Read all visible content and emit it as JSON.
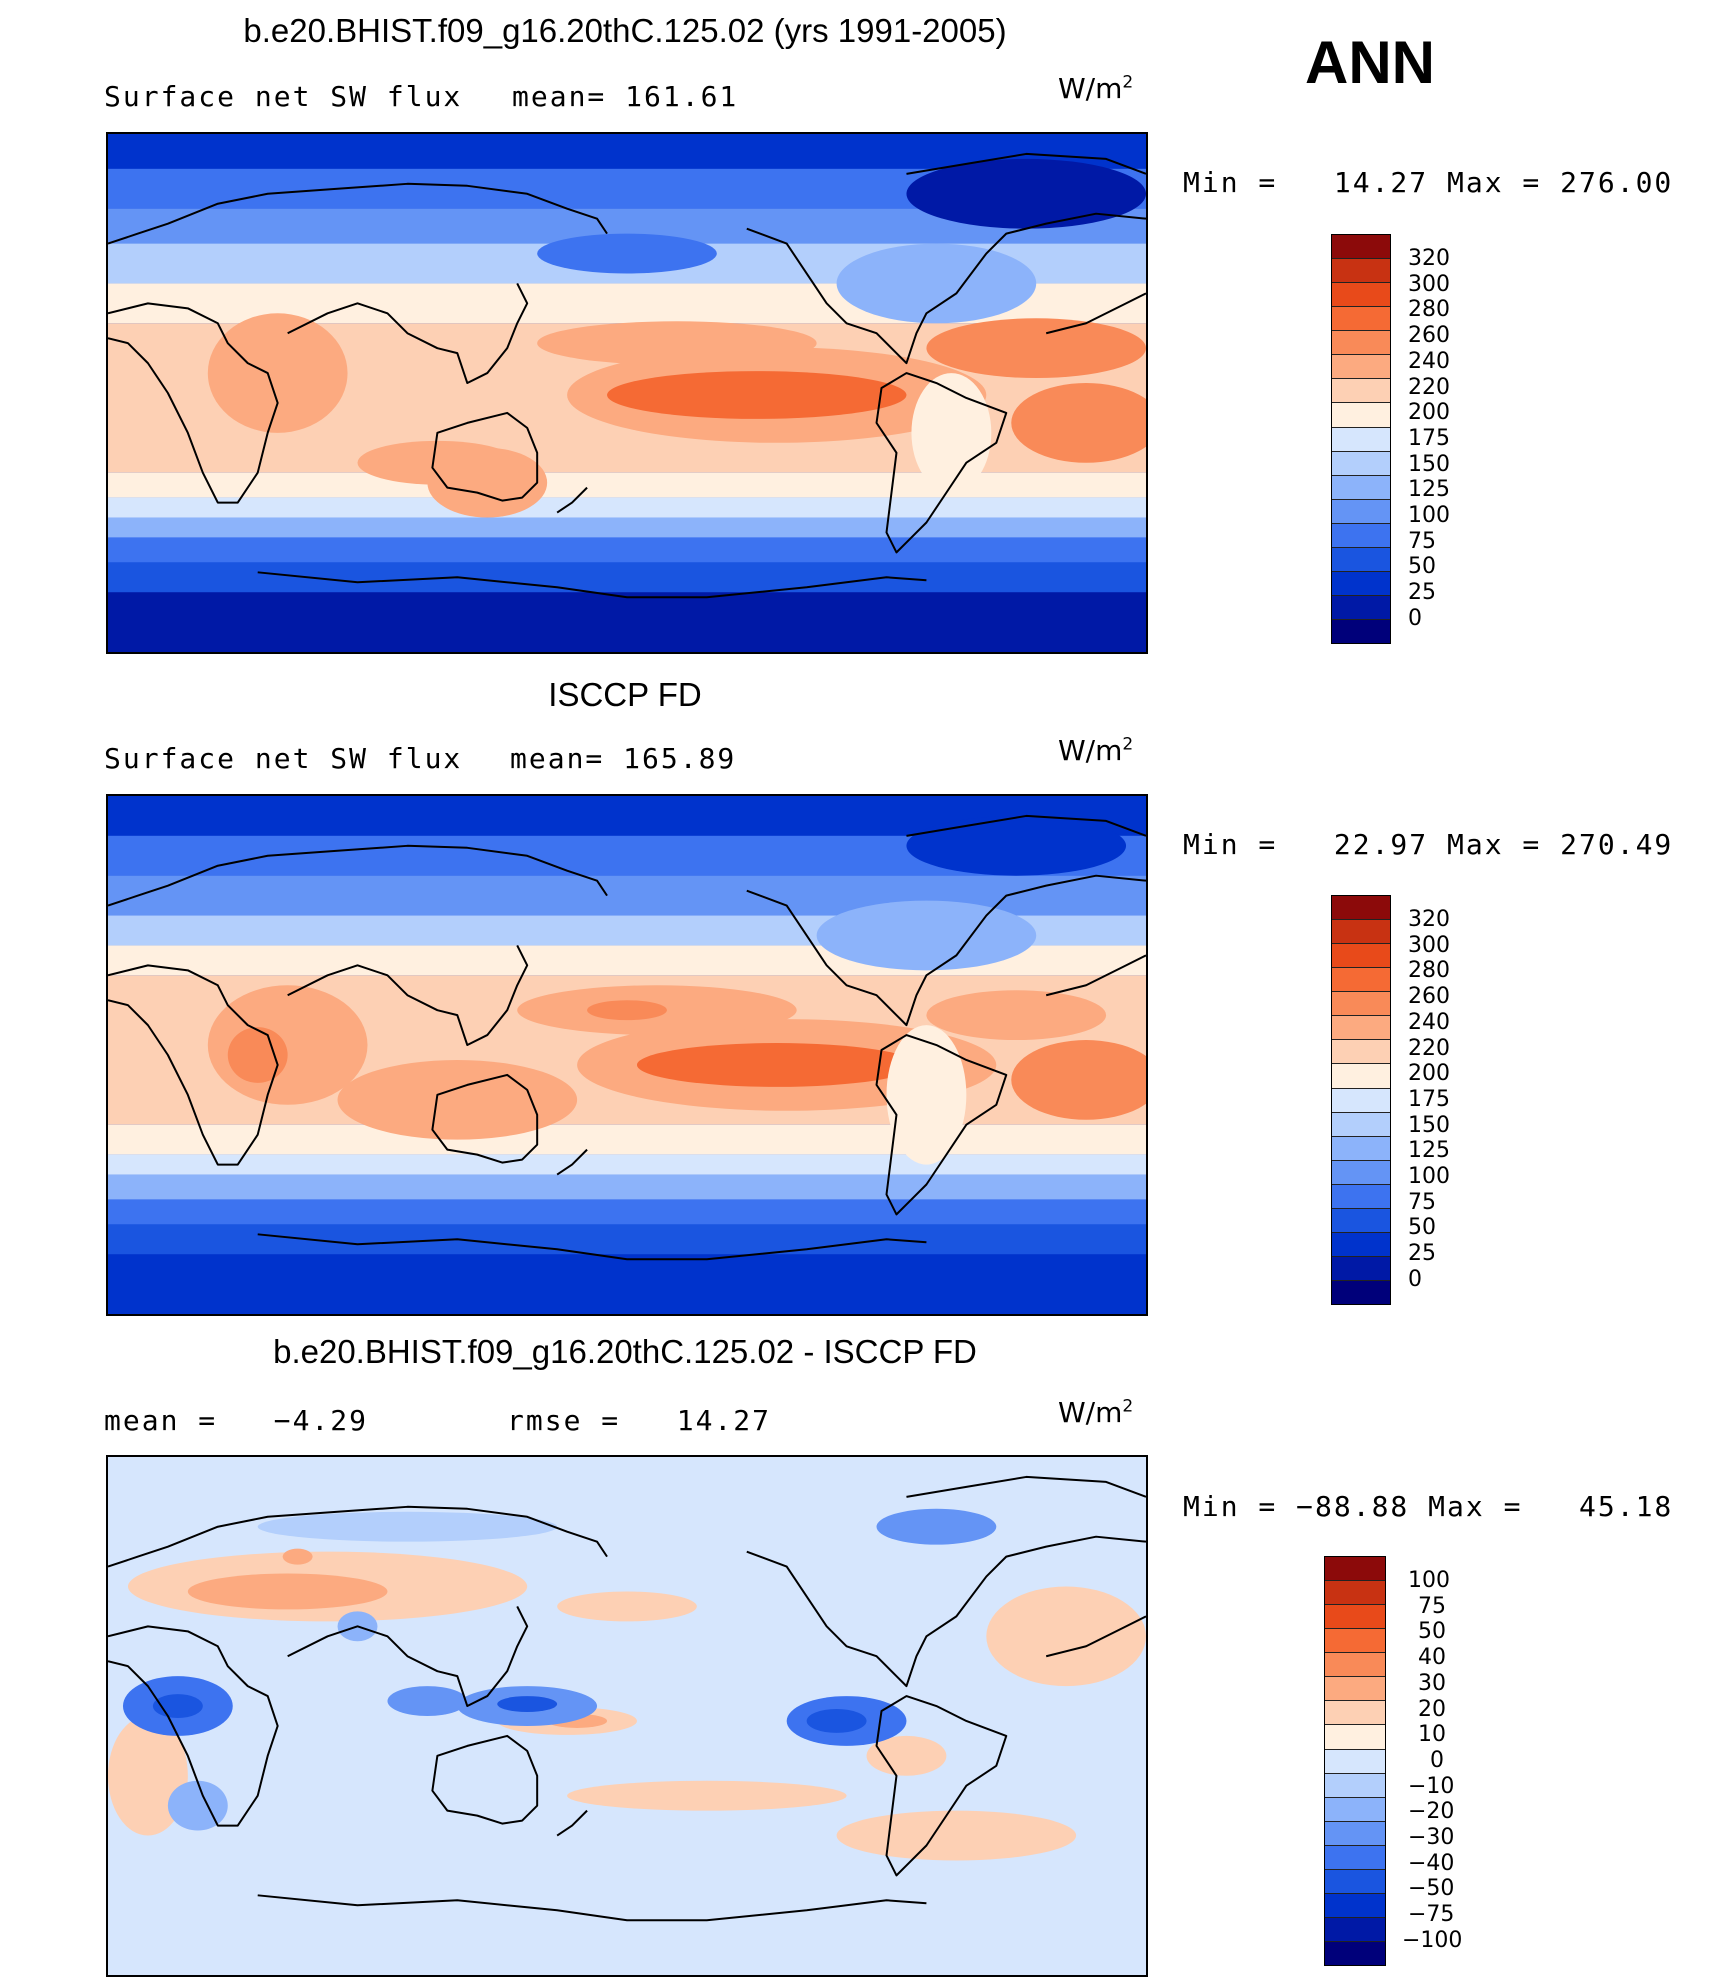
{
  "season": "ANN",
  "units": "W/m",
  "units_sup": "2",
  "colors": {
    "abs_scale": [
      "#00007a",
      "#0019a6",
      "#0033cc",
      "#1a55e0",
      "#3d73f0",
      "#6494f5",
      "#8cb3fa",
      "#b3cffc",
      "#d6e6fd",
      "#fff0e0",
      "#fdd0b4",
      "#fcaa80",
      "#f98a58",
      "#f56a34",
      "#e84a1a",
      "#c83212",
      "#8c0a0a"
    ],
    "diff_scale": [
      "#00007a",
      "#0019a6",
      "#0033cc",
      "#1a55e0",
      "#3d73f0",
      "#6494f5",
      "#8cb3fa",
      "#b3cffc",
      "#d6e6fd",
      "#fff0e0",
      "#fdd0b4",
      "#fcaa80",
      "#f98a58",
      "#f56a34",
      "#e84a1a",
      "#c83212",
      "#8c0a0a"
    ]
  },
  "panels": [
    {
      "title": "b.e20.BHIST.f09_g16.20thC.125.02 (yrs 1991-2005)",
      "left_label": "Surface net SW flux",
      "mid_label": "mean= 161.61",
      "minmax": "Min =   14.27 Max = 276.00",
      "colorbar_labels": [
        "320",
        "300",
        "280",
        "260",
        "240",
        "220",
        "200",
        "175",
        "150",
        "125",
        "100",
        "75",
        "50",
        "25",
        "0"
      ]
    },
    {
      "title": "ISCCP FD",
      "left_label": "Surface net SW flux",
      "mid_label": "mean= 165.89",
      "minmax": "Min =   22.97 Max = 270.49",
      "colorbar_labels": [
        "320",
        "300",
        "280",
        "260",
        "240",
        "220",
        "200",
        "175",
        "150",
        "125",
        "100",
        "75",
        "50",
        "25",
        "0"
      ]
    },
    {
      "title": "b.e20.BHIST.f09_g16.20thC.125.02 - ISCCP FD",
      "left_label": "mean =   −4.29",
      "mid_label": "rmse =   14.27",
      "minmax": "Min = −88.88 Max =   45.18",
      "colorbar_labels": [
        "100",
        "75",
        "50",
        "40",
        "30",
        "20",
        "10",
        "0",
        "−10",
        "−20",
        "−30",
        "−40",
        "−50",
        "−75",
        "−100"
      ]
    }
  ],
  "chart_data": {
    "type": "heatmap",
    "season": "ANN",
    "maps": [
      {
        "title": "b.e20.BHIST.f09_g16.20thC.125.02 (yrs 1991-2005)",
        "variable": "Surface net SW flux",
        "units": "W/m2",
        "mean": 161.61,
        "min": 14.27,
        "max": 276.0,
        "contour_levels": [
          0,
          25,
          50,
          75,
          100,
          125,
          150,
          175,
          200,
          220,
          240,
          260,
          280,
          300,
          320
        ]
      },
      {
        "title": "ISCCP FD",
        "variable": "Surface net SW flux",
        "units": "W/m2",
        "mean": 165.89,
        "min": 22.97,
        "max": 270.49,
        "contour_levels": [
          0,
          25,
          50,
          75,
          100,
          125,
          150,
          175,
          200,
          220,
          240,
          260,
          280,
          300,
          320
        ]
      },
      {
        "title": "b.e20.BHIST.f09_g16.20thC.125.02 - ISCCP FD",
        "units": "W/m2",
        "mean": -4.29,
        "rmse": 14.27,
        "min": -88.88,
        "max": 45.18,
        "contour_levels": [
          -100,
          -75,
          -50,
          -40,
          -30,
          -20,
          -10,
          0,
          10,
          20,
          30,
          40,
          50,
          75,
          100
        ]
      }
    ]
  }
}
